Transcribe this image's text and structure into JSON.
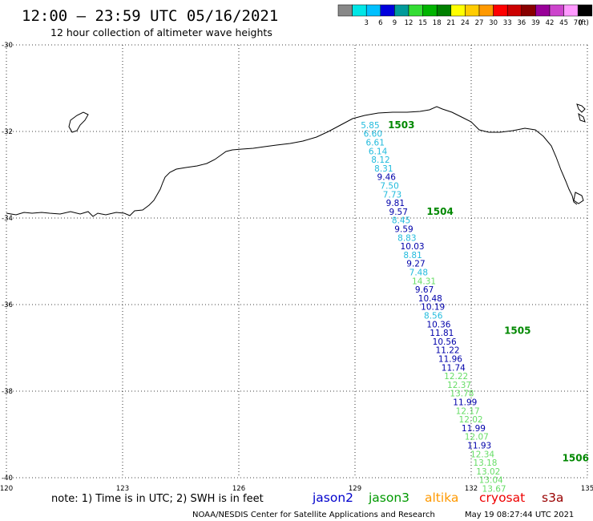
{
  "header": {
    "title": "12:00 – 23:59 UTC 05/16/2021",
    "subtitle": "12 hour collection of altimeter wave heights"
  },
  "legend": {
    "unit": "(ft)",
    "bins": [
      {
        "label": "",
        "color": "#888888"
      },
      {
        "label": "3",
        "color": "#00e6e6"
      },
      {
        "label": "6",
        "color": "#00c0ff"
      },
      {
        "label": "9",
        "color": "#0000dd"
      },
      {
        "label": "12",
        "color": "#009a9a"
      },
      {
        "label": "15",
        "color": "#33dd33"
      },
      {
        "label": "18",
        "color": "#00b400"
      },
      {
        "label": "21",
        "color": "#008000"
      },
      {
        "label": "24",
        "color": "#ffff00"
      },
      {
        "label": "27",
        "color": "#ffcc00"
      },
      {
        "label": "30",
        "color": "#ff9900"
      },
      {
        "label": "33",
        "color": "#ff0000"
      },
      {
        "label": "36",
        "color": "#cc0000"
      },
      {
        "label": "39",
        "color": "#880000"
      },
      {
        "label": "42",
        "color": "#990099"
      },
      {
        "label": "45",
        "color": "#cc44cc"
      },
      {
        "label": "70",
        "color": "#ff99ff"
      },
      {
        "label": "",
        "color": "#000000"
      }
    ]
  },
  "map": {
    "lat_labels": [
      "-30",
      "-32",
      "-34",
      "-36",
      "-38",
      "-40"
    ],
    "lon_labels": [
      "120",
      "123",
      "126",
      "129",
      "132",
      "135"
    ],
    "lat_values": [
      -30,
      -32,
      -34,
      -36,
      -38,
      -40
    ],
    "lon_values": [
      120,
      123,
      126,
      129,
      132,
      135
    ]
  },
  "colors": {
    "cyan": "#22bbdd",
    "blue": "#0000aa",
    "light_green": "#66dd66",
    "pass_label": "#008800"
  },
  "passes": [
    {
      "label": "1503",
      "lat": -31.85,
      "lon": 129.85
    },
    {
      "label": "1504",
      "lat": -33.85,
      "lon": 130.85
    },
    {
      "label": "1505",
      "lat": -36.6,
      "lon": 132.85
    },
    {
      "label": "1506",
      "lat": -39.55,
      "lon": 134.35
    }
  ],
  "observations": [
    {
      "value": "5.85",
      "lat": -31.85,
      "lon": 129.15,
      "c": "cyan"
    },
    {
      "value": "6.60",
      "lat": -32.05,
      "lon": 129.22,
      "c": "cyan"
    },
    {
      "value": "6.61",
      "lat": -32.25,
      "lon": 129.28,
      "c": "cyan"
    },
    {
      "value": "6.14",
      "lat": -32.45,
      "lon": 129.35,
      "c": "cyan"
    },
    {
      "value": "8.12",
      "lat": -32.65,
      "lon": 129.42,
      "c": "cyan"
    },
    {
      "value": "8.31",
      "lat": -32.85,
      "lon": 129.5,
      "c": "cyan"
    },
    {
      "value": "9.46",
      "lat": -33.05,
      "lon": 129.57,
      "c": "blue"
    },
    {
      "value": "7.50",
      "lat": -33.25,
      "lon": 129.65,
      "c": "cyan"
    },
    {
      "value": "7.73",
      "lat": -33.45,
      "lon": 129.72,
      "c": "cyan"
    },
    {
      "value": "9.81",
      "lat": -33.65,
      "lon": 129.8,
      "c": "blue"
    },
    {
      "value": "9.57",
      "lat": -33.85,
      "lon": 129.88,
      "c": "blue"
    },
    {
      "value": "8.45",
      "lat": -34.05,
      "lon": 129.95,
      "c": "cyan"
    },
    {
      "value": "9.59",
      "lat": -34.25,
      "lon": 130.02,
      "c": "blue"
    },
    {
      "value": "8.83",
      "lat": -34.45,
      "lon": 130.1,
      "c": "cyan"
    },
    {
      "value": "10.03",
      "lat": -34.65,
      "lon": 130.17,
      "c": "blue"
    },
    {
      "value": "8.81",
      "lat": -34.85,
      "lon": 130.25,
      "c": "cyan"
    },
    {
      "value": "9.27",
      "lat": -35.05,
      "lon": 130.33,
      "c": "blue"
    },
    {
      "value": "7.48",
      "lat": -35.25,
      "lon": 130.4,
      "c": "cyan"
    },
    {
      "value": "14.31",
      "lat": -35.45,
      "lon": 130.47,
      "c": "light_green"
    },
    {
      "value": "9.67",
      "lat": -35.65,
      "lon": 130.55,
      "c": "blue"
    },
    {
      "value": "10.48",
      "lat": -35.85,
      "lon": 130.63,
      "c": "blue"
    },
    {
      "value": "10.19",
      "lat": -36.05,
      "lon": 130.7,
      "c": "blue"
    },
    {
      "value": "8.56",
      "lat": -36.25,
      "lon": 130.78,
      "c": "cyan"
    },
    {
      "value": "10.36",
      "lat": -36.45,
      "lon": 130.85,
      "c": "blue"
    },
    {
      "value": "11.81",
      "lat": -36.65,
      "lon": 130.93,
      "c": "blue"
    },
    {
      "value": "10.56",
      "lat": -36.85,
      "lon": 131.0,
      "c": "blue"
    },
    {
      "value": "11.22",
      "lat": -37.05,
      "lon": 131.08,
      "c": "blue"
    },
    {
      "value": "11.96",
      "lat": -37.25,
      "lon": 131.15,
      "c": "blue"
    },
    {
      "value": "11.74",
      "lat": -37.45,
      "lon": 131.23,
      "c": "blue"
    },
    {
      "value": "12.22",
      "lat": -37.65,
      "lon": 131.3,
      "c": "light_green"
    },
    {
      "value": "12.37",
      "lat": -37.85,
      "lon": 131.38,
      "c": "light_green"
    },
    {
      "value": "13.78",
      "lat": -38.05,
      "lon": 131.45,
      "c": "light_green"
    },
    {
      "value": "11.99",
      "lat": -38.25,
      "lon": 131.53,
      "c": "blue"
    },
    {
      "value": "12.17",
      "lat": -38.45,
      "lon": 131.6,
      "c": "light_green"
    },
    {
      "value": "12.02",
      "lat": -38.65,
      "lon": 131.68,
      "c": "light_green"
    },
    {
      "value": "11.99",
      "lat": -38.85,
      "lon": 131.75,
      "c": "blue"
    },
    {
      "value": "12.07",
      "lat": -39.05,
      "lon": 131.83,
      "c": "light_green"
    },
    {
      "value": "11.93",
      "lat": -39.25,
      "lon": 131.9,
      "c": "blue"
    },
    {
      "value": "12.34",
      "lat": -39.45,
      "lon": 131.98,
      "c": "light_green"
    },
    {
      "value": "13.18",
      "lat": -39.65,
      "lon": 132.05,
      "c": "light_green"
    },
    {
      "value": "13.02",
      "lat": -39.85,
      "lon": 132.13,
      "c": "light_green"
    },
    {
      "value": "13.04",
      "lat": -40.05,
      "lon": 132.2,
      "c": "light_green"
    },
    {
      "value": "13.67",
      "lat": -40.25,
      "lon": 132.28,
      "c": "light_green"
    }
  ],
  "footer": {
    "note": "note:  1) Time is in UTC; 2) SWH is in feet",
    "satellites": [
      {
        "name": "jason2",
        "color": "#0000cc"
      },
      {
        "name": "jason3",
        "color": "#009900"
      },
      {
        "name": "altika",
        "color": "#ff9900"
      },
      {
        "name": "cryosat",
        "color": "#ee0000"
      },
      {
        "name": "s3a",
        "color": "#990000"
      }
    ],
    "credit": "NOAA/NESDIS Center for Satellite Applications and Research",
    "timestamp": "May 19 08:27:44 UTC 2021"
  }
}
